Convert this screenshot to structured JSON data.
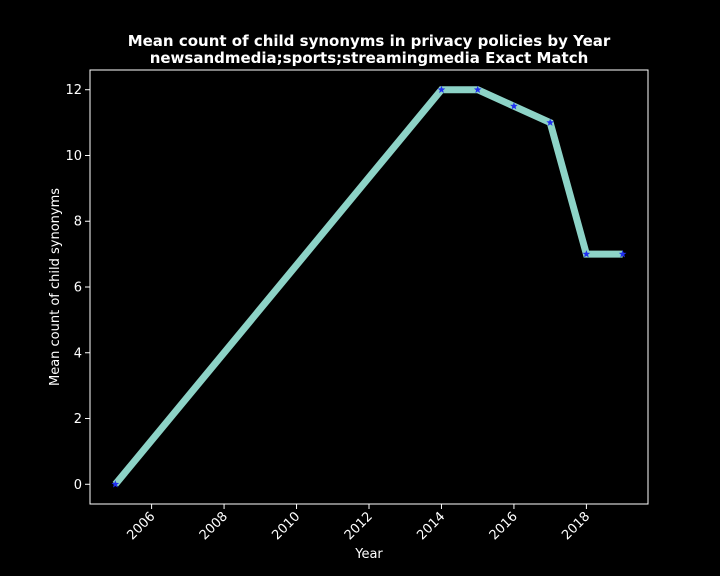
{
  "chart_data": {
    "type": "line",
    "title": "Mean count of child synonyms in privacy policies by Year",
    "subtitle": "newsandmedia;sports;streamingmedia Exact Match",
    "xlabel": "Year",
    "ylabel": "Mean count of child synonyms",
    "xlim": [
      2004.3,
      2019.7
    ],
    "ylim": [
      -0.6,
      12.6
    ],
    "x_ticks": [
      2006,
      2008,
      2010,
      2012,
      2014,
      2016,
      2018
    ],
    "y_ticks": [
      0,
      2,
      4,
      6,
      8,
      10,
      12
    ],
    "grid": false,
    "legend": "none",
    "line_color": "#8dd3c7",
    "marker_color": "#1f2ff0",
    "marker": "star",
    "series": [
      {
        "x": [
          2005,
          2014,
          2015,
          2016,
          2017,
          2018,
          2019
        ],
        "y": [
          0,
          12,
          12,
          11.5,
          11,
          7,
          7
        ]
      }
    ]
  }
}
